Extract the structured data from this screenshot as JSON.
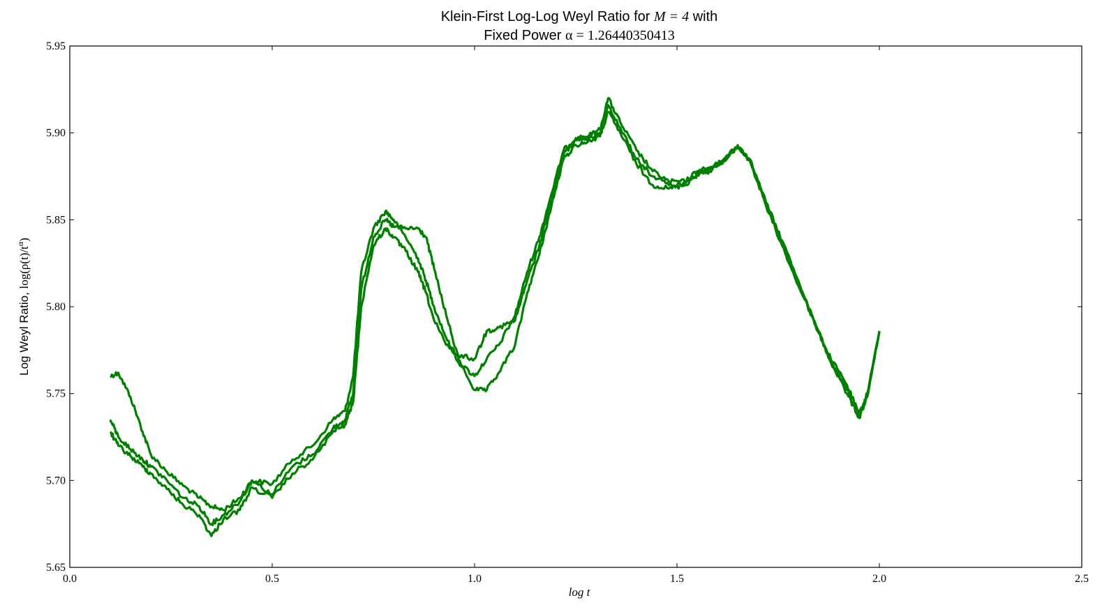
{
  "chart_data": {
    "type": "line",
    "title_line1_text": "Klein-First Log-Log Weyl Ratio for ",
    "title_line1_math": "M = 4",
    "title_line1_suffix": " with",
    "title_line2_text": "Fixed Power ",
    "title_line2_math": "α = 1.26440350413",
    "xlabel_math": "log t",
    "ylabel_text": "Log Weyl Ratio, ",
    "ylabel_math": "log(ρ(t)/t",
    "ylabel_sup": "α",
    "ylabel_close": ")",
    "xlim": [
      0.0,
      2.5
    ],
    "ylim": [
      5.65,
      5.95
    ],
    "x_ticks": [
      "0.0",
      "0.5",
      "1.0",
      "1.5",
      "2.0",
      "2.5"
    ],
    "y_ticks": [
      "5.65",
      "5.70",
      "5.75",
      "5.80",
      "5.85",
      "5.90",
      "5.95"
    ],
    "grid": false,
    "legend": "none",
    "series_color": "#007f00",
    "series": [
      {
        "x": [
          0.1,
          0.12,
          0.15,
          0.18,
          0.2,
          0.24,
          0.28,
          0.32,
          0.35,
          0.38,
          0.42,
          0.45,
          0.5,
          0.55,
          0.6,
          0.65,
          0.68,
          0.7,
          0.72,
          0.75,
          0.78,
          0.8,
          0.83,
          0.86,
          0.88,
          0.9,
          0.93,
          0.96,
          1.0,
          1.03,
          1.06,
          1.1,
          1.13,
          1.16,
          1.19,
          1.22,
          1.25,
          1.28,
          1.31,
          1.33,
          1.36,
          1.4,
          1.44,
          1.48,
          1.52,
          1.55,
          1.58,
          1.62,
          1.65,
          1.68,
          1.72,
          1.76,
          1.8,
          1.85,
          1.88,
          1.92,
          1.95,
          1.97,
          2.0
        ],
        "y": [
          5.76,
          5.762,
          5.748,
          5.728,
          5.715,
          5.705,
          5.697,
          5.69,
          5.685,
          5.683,
          5.69,
          5.7,
          5.698,
          5.712,
          5.72,
          5.735,
          5.74,
          5.76,
          5.82,
          5.845,
          5.855,
          5.85,
          5.84,
          5.828,
          5.815,
          5.8,
          5.782,
          5.768,
          5.76,
          5.77,
          5.778,
          5.795,
          5.82,
          5.84,
          5.865,
          5.89,
          5.897,
          5.898,
          5.902,
          5.92,
          5.906,
          5.89,
          5.878,
          5.872,
          5.872,
          5.878,
          5.88,
          5.884,
          5.893,
          5.885,
          5.86,
          5.838,
          5.815,
          5.785,
          5.77,
          5.755,
          5.738,
          5.75,
          5.785
        ]
      },
      {
        "x": [
          0.1,
          0.12,
          0.15,
          0.18,
          0.2,
          0.24,
          0.28,
          0.32,
          0.35,
          0.38,
          0.42,
          0.45,
          0.5,
          0.55,
          0.6,
          0.65,
          0.68,
          0.7,
          0.72,
          0.75,
          0.78,
          0.8,
          0.83,
          0.86,
          0.88,
          0.9,
          0.93,
          0.96,
          1.0,
          1.03,
          1.06,
          1.1,
          1.13,
          1.16,
          1.19,
          1.22,
          1.25,
          1.28,
          1.31,
          1.33,
          1.36,
          1.4,
          1.44,
          1.48,
          1.52,
          1.55,
          1.58,
          1.62,
          1.65,
          1.68,
          1.72,
          1.76,
          1.8,
          1.85,
          1.88,
          1.92,
          1.95,
          1.97,
          2.0
        ],
        "y": [
          5.735,
          5.725,
          5.718,
          5.712,
          5.708,
          5.7,
          5.69,
          5.685,
          5.675,
          5.68,
          5.688,
          5.7,
          5.692,
          5.708,
          5.715,
          5.73,
          5.735,
          5.75,
          5.81,
          5.84,
          5.85,
          5.846,
          5.845,
          5.845,
          5.84,
          5.822,
          5.795,
          5.77,
          5.752,
          5.752,
          5.762,
          5.778,
          5.808,
          5.83,
          5.858,
          5.885,
          5.893,
          5.895,
          5.898,
          5.912,
          5.9,
          5.882,
          5.87,
          5.868,
          5.87,
          5.876,
          5.878,
          5.886,
          5.892,
          5.884,
          5.858,
          5.835,
          5.812,
          5.786,
          5.768,
          5.75,
          5.736,
          5.748,
          5.786
        ]
      },
      {
        "x": [
          0.1,
          0.12,
          0.15,
          0.18,
          0.2,
          0.24,
          0.28,
          0.32,
          0.35,
          0.38,
          0.42,
          0.45,
          0.5,
          0.55,
          0.6,
          0.65,
          0.68,
          0.7,
          0.72,
          0.75,
          0.78,
          0.8,
          0.83,
          0.86,
          0.88,
          0.9,
          0.93,
          0.96,
          1.0,
          1.03,
          1.06,
          1.1,
          1.13,
          1.16,
          1.19,
          1.22,
          1.25,
          1.28,
          1.31,
          1.33,
          1.36,
          1.4,
          1.44,
          1.48,
          1.52,
          1.55,
          1.58,
          1.62,
          1.65,
          1.68,
          1.72,
          1.76,
          1.8,
          1.85,
          1.88,
          1.92,
          1.95,
          1.97,
          2.0
        ],
        "y": [
          5.728,
          5.72,
          5.714,
          5.708,
          5.704,
          5.695,
          5.686,
          5.68,
          5.668,
          5.678,
          5.683,
          5.696,
          5.69,
          5.704,
          5.712,
          5.728,
          5.732,
          5.745,
          5.8,
          5.835,
          5.845,
          5.84,
          5.832,
          5.82,
          5.808,
          5.792,
          5.778,
          5.772,
          5.77,
          5.786,
          5.788,
          5.792,
          5.815,
          5.835,
          5.862,
          5.888,
          5.896,
          5.897,
          5.9,
          5.916,
          5.903,
          5.885,
          5.875,
          5.87,
          5.871,
          5.877,
          5.879,
          5.885,
          5.892,
          5.884,
          5.859,
          5.836,
          5.813,
          5.785,
          5.769,
          5.752,
          5.737,
          5.749,
          5.786
        ]
      }
    ]
  }
}
